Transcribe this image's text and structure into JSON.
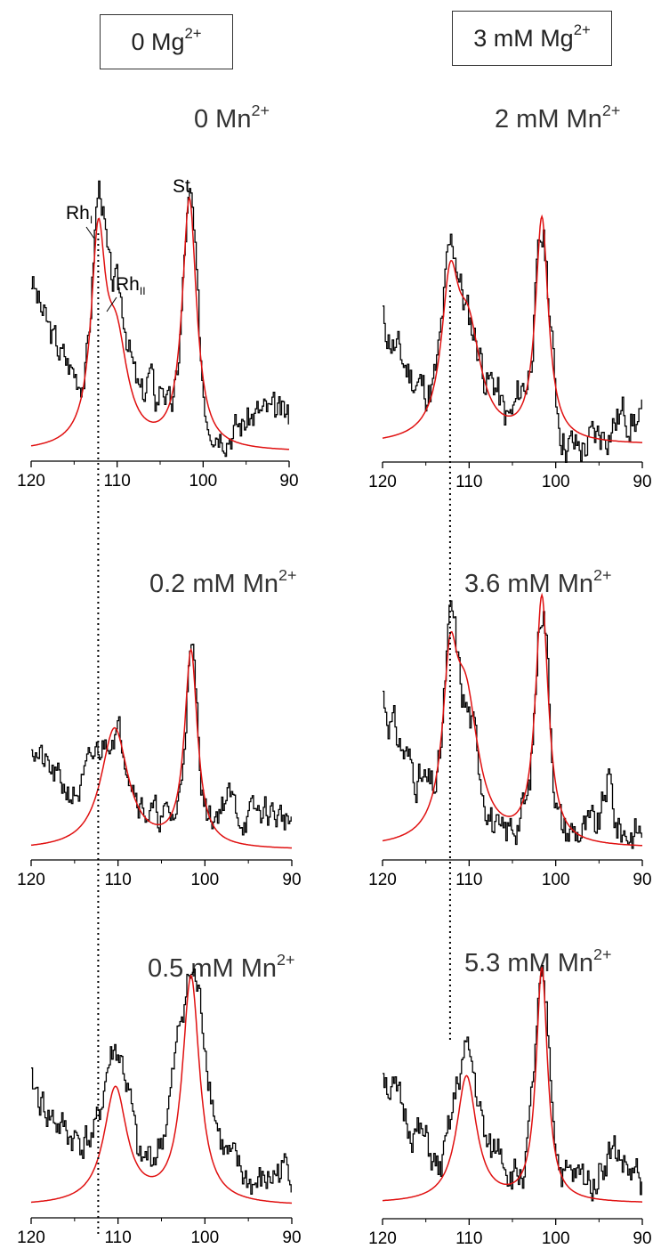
{
  "columns": [
    {
      "label_main": "0 Mg",
      "label_sup": "2+"
    },
    {
      "label_main": "3 mM Mg",
      "label_sup": "2+"
    }
  ],
  "peak_labels": {
    "rh1_main": "Rh",
    "rh1_sub": "I",
    "rh2_main": "Rh",
    "rh2_sub": "II",
    "st": "St"
  },
  "colors": {
    "data": "#000000",
    "fit": "#e01010",
    "axis": "#000000",
    "guide": "#000000"
  },
  "chart_data": [
    {
      "type": "line",
      "title_main": "0 Mn",
      "title_sup": "2+",
      "xlim": [
        120,
        90
      ],
      "x_ticks": [
        120,
        110,
        100,
        90
      ],
      "fit": {
        "peaks": [
          [
            112.2,
            0.78,
            1.0
          ],
          [
            110.1,
            0.4,
            1.6
          ],
          [
            101.6,
            1.0,
            1.0
          ]
        ]
      },
      "experimental": {
        "base": 0.14,
        "wall": 0.55,
        "noise": 0.06,
        "seed": 3,
        "peaks": [
          [
            112.2,
            0.7,
            0.7
          ],
          [
            110.1,
            0.45,
            1.3
          ],
          [
            101.6,
            0.86,
            0.8
          ]
        ],
        "extra": [
          [
            106.3,
            0.14,
            0.4
          ],
          [
            104.8,
            0.13,
            0.4
          ],
          [
            97.0,
            -0.05,
            1.5
          ],
          [
            93.5,
            0.02,
            1.2
          ]
        ]
      }
    },
    {
      "type": "line",
      "title_main": "2 mM Mn",
      "title_sup": "2+",
      "xlim": [
        120,
        90
      ],
      "x_ticks": [
        120,
        110,
        100,
        90
      ],
      "fit": {
        "peaks": [
          [
            112.2,
            0.62,
            1.2
          ],
          [
            110.1,
            0.46,
            1.8
          ],
          [
            101.6,
            1.0,
            0.9
          ]
        ]
      },
      "experimental": {
        "base": 0.08,
        "wall": 0.48,
        "noise": 0.08,
        "seed": 11,
        "peaks": [
          [
            112.2,
            0.55,
            0.9
          ],
          [
            110.1,
            0.4,
            1.6
          ],
          [
            101.6,
            0.84,
            0.9
          ]
        ],
        "extra": [
          [
            107.0,
            0.1,
            0.5
          ],
          [
            104.0,
            0.14,
            0.6
          ],
          [
            97.5,
            -0.1,
            1.8
          ],
          [
            92.0,
            0.06,
            1.0
          ]
        ]
      }
    },
    {
      "type": "line",
      "title_main": "0.2 mM Mn",
      "title_sup": "2+",
      "xlim": [
        120,
        90
      ],
      "x_ticks": [
        120,
        110,
        100,
        90
      ],
      "fit": {
        "peaks": [
          [
            110.4,
            0.53,
            1.9
          ],
          [
            101.6,
            0.86,
            0.9
          ]
        ]
      },
      "experimental": {
        "base": 0.13,
        "wall": 0.34,
        "noise": 0.06,
        "seed": 21,
        "peaks": [
          [
            110.4,
            0.36,
            1.6
          ],
          [
            113.0,
            0.1,
            0.8
          ],
          [
            101.6,
            0.72,
            0.7
          ]
        ],
        "extra": [
          [
            97.5,
            0.1,
            0.8
          ],
          [
            93.0,
            0.04,
            1.2
          ]
        ]
      }
    },
    {
      "type": "line",
      "title_main": "3.6 mM Mn",
      "title_sup": "2+",
      "xlim": [
        120,
        90
      ],
      "x_ticks": [
        120,
        110,
        100,
        90
      ],
      "fit": {
        "peaks": [
          [
            112.2,
            0.58,
            1.0
          ],
          [
            110.4,
            0.56,
            1.8
          ],
          [
            101.6,
            1.0,
            0.9
          ]
        ]
      },
      "experimental": {
        "base": 0.07,
        "wall": 0.55,
        "noise": 0.07,
        "seed": 31,
        "peaks": [
          [
            112.2,
            0.58,
            0.7
          ],
          [
            110.4,
            0.42,
            1.4
          ],
          [
            101.6,
            0.92,
            0.8
          ]
        ],
        "extra": [
          [
            106.5,
            -0.08,
            0.6
          ],
          [
            104.0,
            0.06,
            0.5
          ],
          [
            94.0,
            0.2,
            0.5
          ]
        ]
      }
    },
    {
      "type": "line",
      "title_main": "0.5 mM Mn",
      "title_sup": "2+",
      "xlim": [
        120,
        90
      ],
      "x_ticks": [
        120,
        110,
        100,
        90
      ],
      "fit": {
        "peaks": [
          [
            110.3,
            0.5,
            1.6
          ],
          [
            101.6,
            0.98,
            1.2
          ]
        ]
      },
      "experimental": {
        "base": 0.17,
        "wall": 0.36,
        "noise": 0.07,
        "seed": 41,
        "peaks": [
          [
            110.3,
            0.46,
            1.5
          ],
          [
            112.5,
            -0.06,
            0.5
          ],
          [
            101.6,
            0.82,
            1.7
          ]
        ],
        "extra": [
          [
            107.6,
            -0.1,
            0.5
          ],
          [
            94.0,
            -0.08,
            1.5
          ]
        ]
      }
    },
    {
      "type": "line",
      "title_main": "5.3 mM Mn",
      "title_sup": "2+",
      "xlim": [
        120,
        90
      ],
      "x_ticks": [
        120,
        110,
        100,
        90
      ],
      "fit": {
        "peaks": [
          [
            110.3,
            0.54,
            1.4
          ],
          [
            101.6,
            1.0,
            0.8
          ]
        ]
      },
      "experimental": {
        "base": 0.1,
        "wall": 0.48,
        "noise": 0.07,
        "seed": 51,
        "peaks": [
          [
            110.3,
            0.48,
            1.3
          ],
          [
            101.6,
            0.8,
            0.9
          ]
        ],
        "extra": [
          [
            113.5,
            -0.1,
            0.7
          ],
          [
            106.5,
            0.12,
            0.6
          ],
          [
            93.5,
            0.12,
            1.2
          ]
        ]
      }
    }
  ]
}
